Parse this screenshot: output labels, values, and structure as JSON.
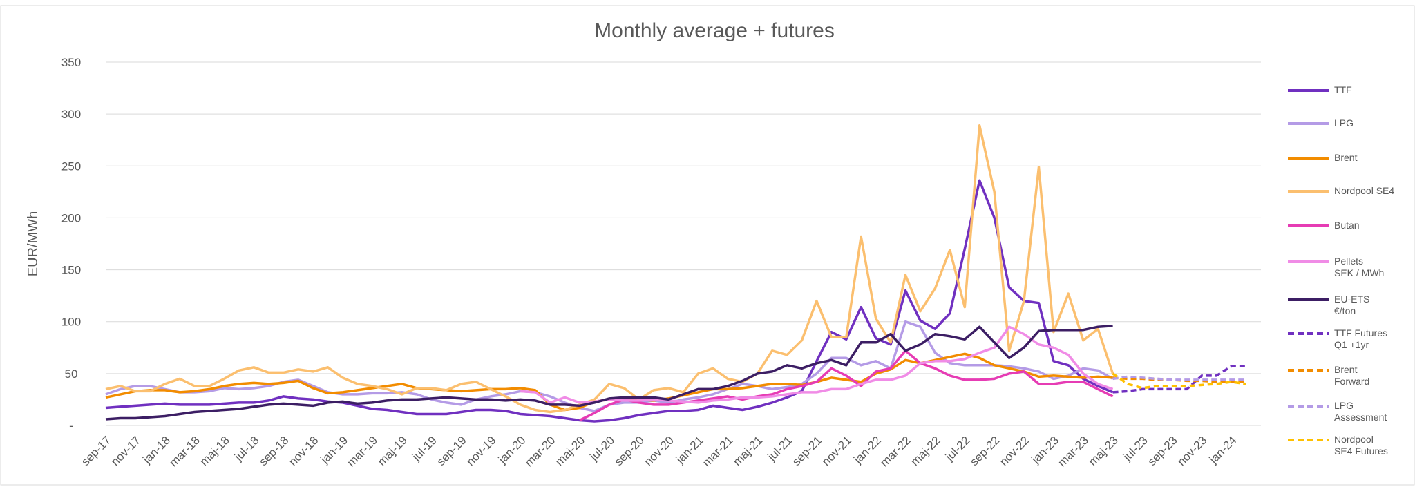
{
  "chart_data": {
    "type": "line",
    "title": "Monthly average + futures",
    "y_label": "EUR/MWh",
    "categories": [
      "sep-17",
      null,
      "nov-17",
      null,
      "jan-18",
      null,
      "mar-18",
      null,
      "maj-18",
      null,
      "jul-18",
      null,
      "sep-18",
      null,
      "nov-18",
      null,
      "jan-19",
      null,
      "mar-19",
      null,
      "maj-19",
      null,
      "jul-19",
      null,
      "sep-19",
      null,
      "nov-19",
      null,
      "jan-20",
      null,
      "mar-20",
      null,
      "maj-20",
      null,
      "jul-20",
      null,
      "sep-20",
      null,
      "nov-20",
      null,
      "jan-21",
      null,
      "mar-21",
      null,
      "maj-21",
      null,
      "jul-21",
      null,
      "sep-21",
      null,
      "nov-21",
      null,
      "jan-22",
      null,
      "mar-22",
      null,
      "maj-22",
      null,
      "jul-22",
      null,
      "sep-22",
      null,
      "nov-22",
      null,
      "jan-23",
      null,
      "mar-23",
      null,
      "maj-23",
      null,
      "jul-23",
      null,
      "sep-23",
      null,
      "nov-23",
      null,
      "jan-24",
      null
    ],
    "ylim": [
      0,
      350
    ],
    "yticks": [
      {
        "value": 0,
        "label": "-"
      },
      50,
      100,
      150,
      200,
      250,
      300,
      350
    ],
    "grid": true,
    "legend": "right",
    "series": [
      {
        "name": "TTF",
        "color": "#7030c0",
        "dashed": false,
        "values": [
          17,
          18,
          19,
          20,
          21,
          20,
          20,
          20,
          21,
          22,
          22,
          24,
          28,
          26,
          25,
          23,
          22,
          19,
          16,
          15,
          13,
          11,
          11,
          11,
          13,
          15,
          15,
          14,
          11,
          10,
          9,
          7,
          5,
          4,
          5,
          7,
          10,
          12,
          14,
          14,
          15,
          19,
          17,
          15,
          18,
          22,
          27,
          33,
          62,
          90,
          83,
          114,
          84,
          78,
          130,
          101,
          93,
          108,
          170,
          236,
          200,
          133,
          120,
          118,
          62,
          58,
          45,
          38,
          32,
          null,
          null,
          null,
          null,
          null,
          null,
          null,
          null,
          null
        ]
      },
      {
        "name": "LPG",
        "color": "#b49be6",
        "dashed": false,
        "values": [
          30,
          35,
          38,
          38,
          35,
          32,
          32,
          33,
          36,
          35,
          36,
          38,
          42,
          44,
          38,
          32,
          30,
          30,
          31,
          31,
          32,
          30,
          25,
          22,
          20,
          25,
          28,
          30,
          33,
          32,
          28,
          22,
          17,
          14,
          20,
          22,
          22,
          24,
          22,
          25,
          27,
          30,
          35,
          40,
          38,
          35,
          37,
          40,
          50,
          65,
          65,
          58,
          62,
          55,
          100,
          95,
          70,
          60,
          58,
          58,
          58,
          57,
          55,
          52,
          45,
          48,
          55,
          53,
          45,
          null,
          null,
          null,
          null,
          null,
          null,
          null,
          null,
          null
        ]
      },
      {
        "name": "Brent",
        "color": "#f28c00",
        "dashed": false,
        "values": [
          27,
          30,
          33,
          34,
          34,
          32,
          33,
          35,
          38,
          40,
          41,
          40,
          41,
          43,
          36,
          31,
          32,
          34,
          36,
          38,
          40,
          36,
          35,
          34,
          33,
          34,
          35,
          35,
          36,
          34,
          20,
          15,
          17,
          23,
          25,
          26,
          25,
          24,
          26,
          29,
          32,
          35,
          35,
          36,
          38,
          40,
          40,
          39,
          42,
          46,
          44,
          42,
          50,
          54,
          63,
          60,
          63,
          66,
          69,
          65,
          58,
          55,
          52,
          47,
          48,
          47,
          46,
          47,
          46,
          null,
          null,
          null,
          null,
          null,
          null,
          null,
          null,
          null
        ]
      },
      {
        "name": "Nordpool  SE4",
        "color": "#fbbf6f",
        "dashed": false,
        "values": [
          35,
          38,
          33,
          33,
          40,
          45,
          38,
          38,
          45,
          53,
          56,
          51,
          51,
          54,
          52,
          56,
          46,
          40,
          38,
          35,
          30,
          36,
          36,
          34,
          40,
          42,
          35,
          28,
          20,
          15,
          13,
          15,
          20,
          25,
          40,
          36,
          25,
          34,
          36,
          32,
          50,
          55,
          45,
          42,
          50,
          72,
          68,
          82,
          120,
          85,
          85,
          182,
          103,
          80,
          145,
          110,
          132,
          169,
          114,
          289,
          225,
          72,
          120,
          249,
          90,
          127,
          82,
          93,
          50,
          null,
          null,
          null,
          null,
          null,
          null,
          null,
          null,
          null
        ]
      },
      {
        "name": "Butan",
        "color": "#e63cb4",
        "dashed": false,
        "values": [
          null,
          null,
          null,
          null,
          null,
          null,
          null,
          null,
          null,
          null,
          null,
          null,
          null,
          null,
          null,
          null,
          null,
          null,
          null,
          null,
          null,
          null,
          null,
          null,
          null,
          null,
          null,
          null,
          null,
          null,
          null,
          null,
          5,
          12,
          20,
          25,
          22,
          20,
          20,
          22,
          24,
          26,
          28,
          25,
          28,
          30,
          35,
          38,
          42,
          55,
          48,
          38,
          52,
          55,
          72,
          60,
          55,
          48,
          44,
          44,
          45,
          50,
          52,
          40,
          40,
          42,
          42,
          35,
          28,
          null,
          null,
          null,
          null,
          null,
          null,
          null,
          null,
          null
        ]
      },
      {
        "name": "Pellets\nSEK / MWh",
        "color": "#f08ce6",
        "dashed": false,
        "values": [
          null,
          null,
          null,
          null,
          null,
          null,
          null,
          null,
          null,
          null,
          null,
          null,
          null,
          null,
          null,
          null,
          null,
          null,
          null,
          null,
          null,
          null,
          null,
          null,
          null,
          null,
          null,
          null,
          33,
          32,
          22,
          27,
          22,
          23,
          25,
          24,
          24,
          25,
          24,
          23,
          22,
          24,
          25,
          27,
          27,
          28,
          30,
          32,
          32,
          35,
          35,
          40,
          44,
          44,
          48,
          60,
          62,
          62,
          64,
          70,
          75,
          95,
          88,
          78,
          75,
          68,
          50,
          40,
          35,
          null,
          null,
          null,
          null,
          null,
          null,
          null,
          null,
          null
        ]
      },
      {
        "name": "EU-ETS\n€/ton",
        "color": "#3c1e64",
        "dashed": false,
        "values": [
          6,
          7,
          7,
          8,
          9,
          11,
          13,
          14,
          15,
          16,
          18,
          20,
          21,
          20,
          19,
          22,
          23,
          21,
          22,
          24,
          25,
          25,
          26,
          27,
          26,
          25,
          25,
          24,
          25,
          24,
          20,
          20,
          19,
          22,
          26,
          27,
          27,
          27,
          25,
          30,
          35,
          35,
          38,
          43,
          50,
          52,
          58,
          55,
          60,
          63,
          58,
          80,
          80,
          88,
          72,
          78,
          88,
          86,
          83,
          95,
          80,
          65,
          75,
          91,
          92,
          92,
          92,
          95,
          96,
          null,
          null,
          null,
          null,
          null,
          null,
          null,
          null,
          null
        ]
      },
      {
        "name": "TTF Futures\nQ1 +1yr",
        "color": "#7030c0",
        "dashed": true,
        "values": [
          null,
          null,
          null,
          null,
          null,
          null,
          null,
          null,
          null,
          null,
          null,
          null,
          null,
          null,
          null,
          null,
          null,
          null,
          null,
          null,
          null,
          null,
          null,
          null,
          null,
          null,
          null,
          null,
          null,
          null,
          null,
          null,
          null,
          null,
          null,
          null,
          null,
          null,
          null,
          null,
          null,
          null,
          null,
          null,
          null,
          null,
          null,
          null,
          null,
          null,
          null,
          null,
          null,
          null,
          null,
          null,
          null,
          null,
          null,
          null,
          null,
          null,
          null,
          null,
          null,
          null,
          null,
          null,
          32,
          33,
          35,
          35,
          35,
          35,
          48,
          48,
          57,
          57
        ]
      },
      {
        "name": "Brent\nForward",
        "color": "#f28c00",
        "dashed": true,
        "values": [
          null,
          null,
          null,
          null,
          null,
          null,
          null,
          null,
          null,
          null,
          null,
          null,
          null,
          null,
          null,
          null,
          null,
          null,
          null,
          null,
          null,
          null,
          null,
          null,
          null,
          null,
          null,
          null,
          null,
          null,
          null,
          null,
          null,
          null,
          null,
          null,
          null,
          null,
          null,
          null,
          null,
          null,
          null,
          null,
          null,
          null,
          null,
          null,
          null,
          null,
          null,
          null,
          null,
          null,
          null,
          null,
          null,
          null,
          null,
          null,
          null,
          null,
          null,
          null,
          null,
          null,
          null,
          null,
          46,
          45,
          45,
          44,
          44,
          43,
          43,
          42,
          42,
          42
        ]
      },
      {
        "name": "LPG\nAssessment",
        "color": "#b49be6",
        "dashed": true,
        "values": [
          null,
          null,
          null,
          null,
          null,
          null,
          null,
          null,
          null,
          null,
          null,
          null,
          null,
          null,
          null,
          null,
          null,
          null,
          null,
          null,
          null,
          null,
          null,
          null,
          null,
          null,
          null,
          null,
          null,
          null,
          null,
          null,
          null,
          null,
          null,
          null,
          null,
          null,
          null,
          null,
          null,
          null,
          null,
          null,
          null,
          null,
          null,
          null,
          null,
          null,
          null,
          null,
          null,
          null,
          null,
          null,
          null,
          null,
          null,
          null,
          null,
          null,
          null,
          null,
          null,
          null,
          null,
          null,
          45,
          47,
          46,
          45,
          44,
          44,
          44,
          44,
          44,
          44
        ]
      },
      {
        "name": "Nordpool\nSE4 Futures",
        "color": "#ffc000",
        "dashed": true,
        "values": [
          null,
          null,
          null,
          null,
          null,
          null,
          null,
          null,
          null,
          null,
          null,
          null,
          null,
          null,
          null,
          null,
          null,
          null,
          null,
          null,
          null,
          null,
          null,
          null,
          null,
          null,
          null,
          null,
          null,
          null,
          null,
          null,
          null,
          null,
          null,
          null,
          null,
          null,
          null,
          null,
          null,
          null,
          null,
          null,
          null,
          null,
          null,
          null,
          null,
          null,
          null,
          null,
          null,
          null,
          null,
          null,
          null,
          null,
          null,
          null,
          null,
          null,
          null,
          null,
          null,
          null,
          null,
          null,
          50,
          40,
          36,
          38,
          38,
          38,
          39,
          40,
          42,
          40
        ]
      }
    ]
  }
}
